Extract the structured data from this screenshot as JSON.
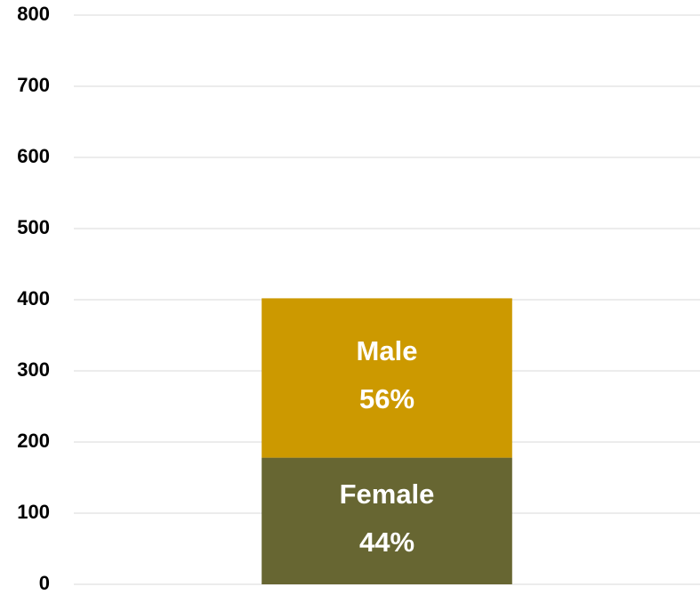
{
  "chart_data": {
    "type": "stacked_bar",
    "categories": [
      null
    ],
    "series": [
      {
        "name": "Female",
        "color": "#676632",
        "values": [
          178
        ],
        "share_labels": [
          "44%"
        ]
      },
      {
        "name": "Male",
        "color": "#cc9900",
        "values": [
          224
        ],
        "share_labels": [
          "56%"
        ]
      }
    ],
    "ylim": [
      0,
      800
    ],
    "yticks": [
      0,
      100,
      200,
      300,
      400,
      500,
      600,
      700,
      800
    ],
    "grid": true
  }
}
